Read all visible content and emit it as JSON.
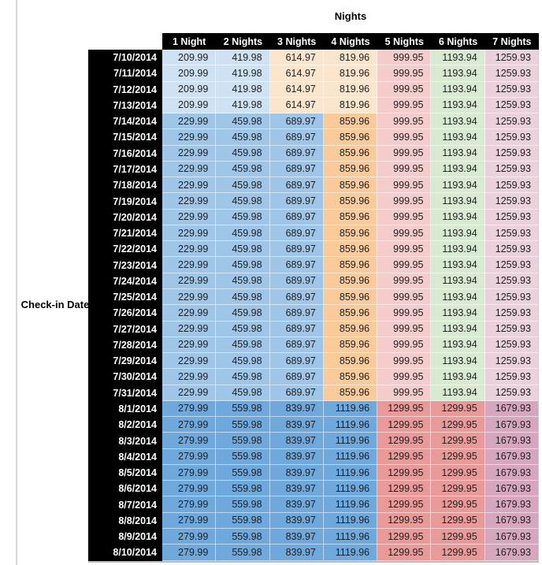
{
  "title": "Nights",
  "row_axis_label": "Check-in Date",
  "table": {
    "columns": [
      "1 Night",
      "2 Nights",
      "3 Nights",
      "4 Nights",
      "5 Nights",
      "6 Nights",
      "7 Nights"
    ],
    "tiers": {
      "early_july": {
        "values": [
          "209.99",
          "419.98",
          "614.97",
          "819.96",
          "999.95",
          "1193.94",
          "1259.93"
        ],
        "colors": [
          "#cfe2f3",
          "#cfe2f3",
          "#fce5cd",
          "#fce5cd",
          "#f4cccc",
          "#d9ead3",
          "#ead1dc"
        ]
      },
      "late_july": {
        "values": [
          "229.99",
          "459.98",
          "689.97",
          "859.96",
          "999.95",
          "1193.94",
          "1259.93"
        ],
        "colors": [
          "#9fc5e8",
          "#9fc5e8",
          "#9fc5e8",
          "#f9cb9c",
          "#f4cccc",
          "#d9ead3",
          "#ead1dc"
        ]
      },
      "august": {
        "values": [
          "279.99",
          "559.98",
          "839.97",
          "1119.96",
          "1299.95",
          "1299.95",
          "1679.93"
        ],
        "colors": [
          "#6fa8dc",
          "#6fa8dc",
          "#6fa8dc",
          "#6fa8dc",
          "#ea9999",
          "#ea9999",
          "#d5a6bd"
        ]
      }
    },
    "rows": [
      {
        "date": "7/10/2014",
        "tier": "early_july"
      },
      {
        "date": "7/11/2014",
        "tier": "early_july"
      },
      {
        "date": "7/12/2014",
        "tier": "early_july"
      },
      {
        "date": "7/13/2014",
        "tier": "early_july"
      },
      {
        "date": "7/14/2014",
        "tier": "late_july"
      },
      {
        "date": "7/15/2014",
        "tier": "late_july"
      },
      {
        "date": "7/16/2014",
        "tier": "late_july"
      },
      {
        "date": "7/17/2014",
        "tier": "late_july"
      },
      {
        "date": "7/18/2014",
        "tier": "late_july"
      },
      {
        "date": "7/19/2014",
        "tier": "late_july"
      },
      {
        "date": "7/20/2014",
        "tier": "late_july"
      },
      {
        "date": "7/21/2014",
        "tier": "late_july"
      },
      {
        "date": "7/22/2014",
        "tier": "late_july"
      },
      {
        "date": "7/23/2014",
        "tier": "late_july"
      },
      {
        "date": "7/24/2014",
        "tier": "late_july"
      },
      {
        "date": "7/25/2014",
        "tier": "late_july"
      },
      {
        "date": "7/26/2014",
        "tier": "late_july"
      },
      {
        "date": "7/27/2014",
        "tier": "late_july"
      },
      {
        "date": "7/28/2014",
        "tier": "late_july"
      },
      {
        "date": "7/29/2014",
        "tier": "late_july"
      },
      {
        "date": "7/30/2014",
        "tier": "late_july"
      },
      {
        "date": "7/31/2014",
        "tier": "late_july"
      },
      {
        "date": "8/1/2014",
        "tier": "august"
      },
      {
        "date": "8/2/2014",
        "tier": "august"
      },
      {
        "date": "8/3/2014",
        "tier": "august"
      },
      {
        "date": "8/4/2014",
        "tier": "august"
      },
      {
        "date": "8/5/2014",
        "tier": "august"
      },
      {
        "date": "8/6/2014",
        "tier": "august"
      },
      {
        "date": "8/7/2014",
        "tier": "august"
      },
      {
        "date": "8/8/2014",
        "tier": "august"
      },
      {
        "date": "8/9/2014",
        "tier": "august"
      },
      {
        "date": "8/10/2014",
        "tier": "august"
      }
    ],
    "colors": {
      "header_bg": "#000000",
      "header_text": "#ffffff",
      "row_header_bg": "#000000",
      "row_header_text": "#ffffff",
      "price_text": "#1f1f1f",
      "grid_line": "rgba(255,255,255,0.55)",
      "table_bottom_edge": "#bdbdbd",
      "left_divider": "#d9d9d9"
    }
  }
}
